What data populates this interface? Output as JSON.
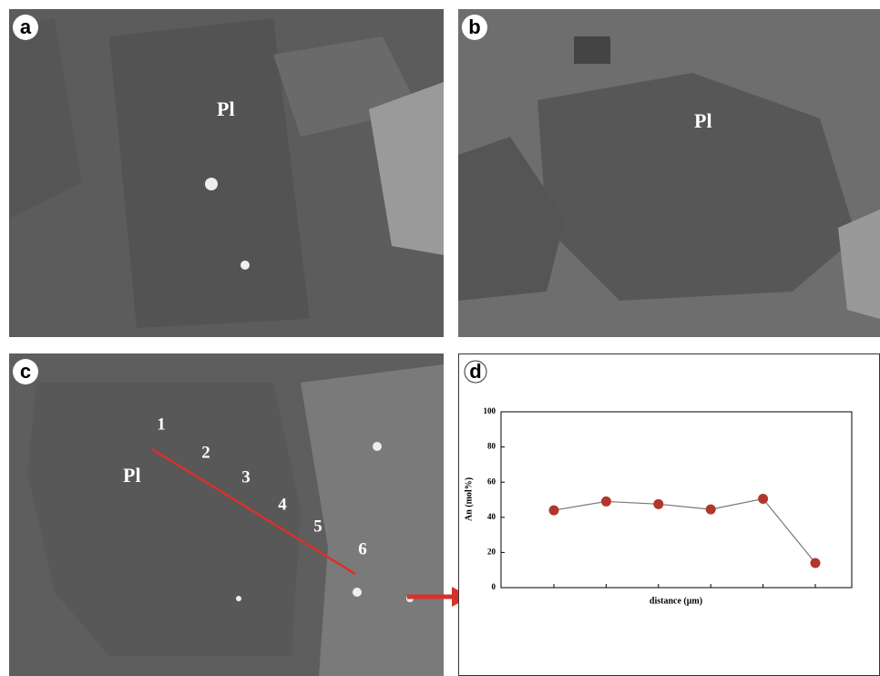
{
  "panels": {
    "a": {
      "label": "a",
      "mineral": "Pl"
    },
    "b": {
      "label": "b",
      "mineral": "Pl"
    },
    "c": {
      "label": "c",
      "mineral": "Pl",
      "points": [
        "1",
        "2",
        "3",
        "4",
        "5",
        "6"
      ]
    },
    "d": {
      "label": "d"
    }
  },
  "chart_data": {
    "type": "line",
    "x_label": "distance (μm)",
    "y_label": "An (mol%)",
    "categories": [
      null,
      null,
      null,
      null,
      null,
      null
    ],
    "values": [
      44,
      49,
      47.5,
      44.5,
      50.5,
      14
    ],
    "color": "#b3362c",
    "line_color": "#777777",
    "ylim": [
      0,
      100
    ],
    "yticks": [
      0,
      20,
      40,
      60,
      80,
      100
    ]
  }
}
